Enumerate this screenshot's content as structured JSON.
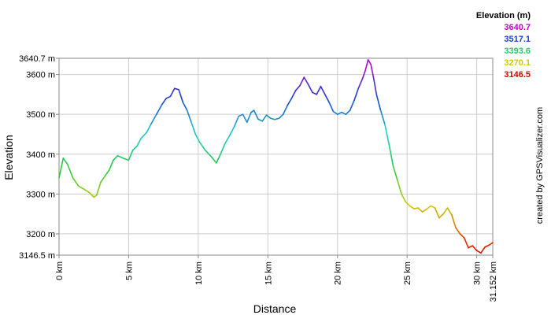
{
  "chart_data": {
    "type": "line",
    "title": "",
    "xlabel": "Distance",
    "ylabel": "Elevation",
    "x_unit": "km",
    "y_unit": "m",
    "xlim": [
      0,
      31.152
    ],
    "ylim": [
      3146.5,
      3640.7
    ],
    "x_ticks": [
      "0 km",
      "5 km",
      "10 km",
      "15 km",
      "20 km",
      "25 km",
      "30 km",
      "31.152 km"
    ],
    "y_ticks": [
      "3640.7 m",
      "3600 m",
      "3500 m",
      "3400 m",
      "3300 m",
      "3200 m",
      "3146.5 m"
    ],
    "grid": true,
    "legend": {
      "title": "Elevation (m)",
      "placement": "top-right",
      "entries": [
        {
          "label": "3640.7",
          "color": "#cc00cc"
        },
        {
          "label": "3517.1",
          "color": "#1a3fcc"
        },
        {
          "label": "3393.6",
          "color": "#22cc66"
        },
        {
          "label": "3270.1",
          "color": "#cccc00"
        },
        {
          "label": "3146.5",
          "color": "#dd0000"
        }
      ]
    },
    "credit": "created by GPSVisualizer.com",
    "series": [
      {
        "x": [
          0,
          0.3,
          0.6,
          1.0,
          1.4,
          1.8,
          2.2,
          2.5,
          2.7,
          3.0,
          3.3,
          3.6,
          3.9,
          4.2,
          4.6,
          5.0,
          5.3,
          5.6,
          5.9,
          6.3,
          6.6,
          7.0,
          7.4,
          7.7,
          8.0,
          8.3,
          8.6,
          8.9,
          9.2,
          9.5,
          9.8,
          10.1,
          10.5,
          10.9,
          11.3,
          11.6,
          11.9,
          12.3,
          12.6,
          12.9,
          13.2,
          13.5,
          13.8,
          14.0,
          14.3,
          14.6,
          14.9,
          15.2,
          15.5,
          15.8,
          16.1,
          16.4,
          16.7,
          17.0,
          17.3,
          17.6,
          17.9,
          18.2,
          18.5,
          18.8,
          19.1,
          19.4,
          19.7,
          20.0,
          20.3,
          20.6,
          20.9,
          21.2,
          21.5,
          21.8,
          22.0,
          22.2,
          22.4,
          22.6,
          22.8,
          23.1,
          23.4,
          23.7,
          24.0,
          24.3,
          24.6,
          24.9,
          25.2,
          25.5,
          25.8,
          26.1,
          26.4,
          26.7,
          27.0,
          27.3,
          27.6,
          27.9,
          28.2,
          28.5,
          28.8,
          29.1,
          29.4,
          29.7,
          30.0,
          30.3,
          30.6,
          30.9,
          31.152
        ],
        "y": [
          3340,
          3390,
          3375,
          3340,
          3320,
          3312,
          3303,
          3292,
          3297,
          3330,
          3345,
          3360,
          3385,
          3396,
          3390,
          3385,
          3410,
          3420,
          3440,
          3455,
          3475,
          3500,
          3525,
          3540,
          3545,
          3565,
          3562,
          3530,
          3510,
          3480,
          3450,
          3430,
          3410,
          3395,
          3378,
          3400,
          3425,
          3450,
          3470,
          3495,
          3500,
          3480,
          3505,
          3510,
          3488,
          3483,
          3498,
          3490,
          3487,
          3490,
          3500,
          3522,
          3540,
          3560,
          3572,
          3593,
          3575,
          3555,
          3550,
          3570,
          3550,
          3530,
          3507,
          3500,
          3505,
          3500,
          3510,
          3535,
          3565,
          3590,
          3610,
          3637,
          3625,
          3590,
          3550,
          3510,
          3475,
          3425,
          3370,
          3335,
          3300,
          3280,
          3270,
          3263,
          3265,
          3255,
          3262,
          3270,
          3265,
          3240,
          3250,
          3265,
          3248,
          3215,
          3200,
          3190,
          3165,
          3170,
          3158,
          3152,
          3167,
          3172,
          3178
        ]
      }
    ]
  }
}
